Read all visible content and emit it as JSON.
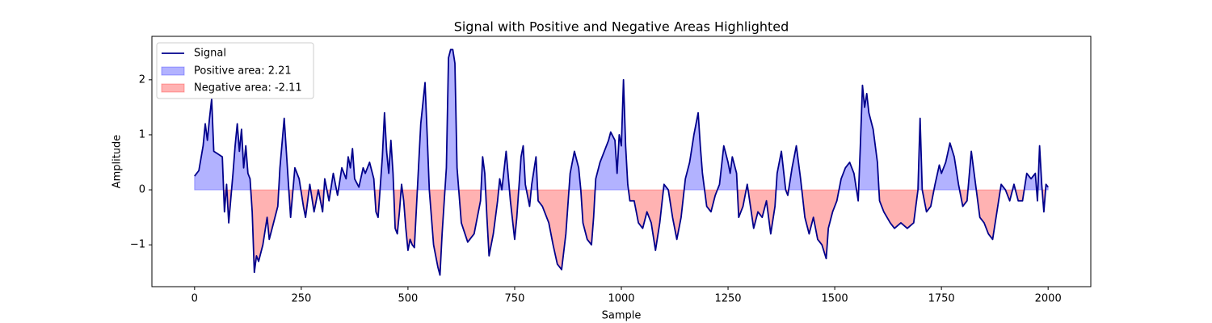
{
  "chart_data": {
    "type": "line",
    "title": "Signal with Positive and Negative Areas Highlighted",
    "xlabel": "Sample",
    "ylabel": "Amplitude",
    "xlim": [
      -100,
      2100
    ],
    "ylim": [
      -1.76,
      2.79
    ],
    "xticks": [
      0,
      250,
      500,
      750,
      1000,
      1250,
      1500,
      1750,
      2000
    ],
    "yticks": [
      {
        "value": -1,
        "label": "−1"
      },
      0,
      1,
      2
    ],
    "legend": "upper left",
    "series": [
      {
        "name": "Signal",
        "color": "#00008b",
        "x": [
          0,
          10,
          20,
          25,
          30,
          35,
          40,
          45,
          55,
          65,
          70,
          75,
          80,
          90,
          95,
          100,
          105,
          110,
          115,
          120,
          125,
          130,
          135,
          140,
          145,
          150,
          160,
          170,
          175,
          185,
          195,
          200,
          210,
          215,
          220,
          225,
          235,
          245,
          255,
          260,
          270,
          280,
          290,
          300,
          305,
          315,
          325,
          335,
          345,
          355,
          360,
          365,
          370,
          375,
          385,
          395,
          400,
          410,
          420,
          425,
          430,
          440,
          445,
          450,
          455,
          460,
          465,
          470,
          475,
          480,
          485,
          490,
          495,
          500,
          505,
          510,
          515,
          520,
          530,
          540,
          545,
          550,
          560,
          570,
          575,
          580,
          590,
          595,
          600,
          605,
          610,
          615,
          625,
          640,
          655,
          665,
          670,
          675,
          680,
          685,
          690,
          700,
          710,
          715,
          720,
          730,
          740,
          750,
          755,
          765,
          770,
          775,
          785,
          790,
          800,
          805,
          815,
          830,
          840,
          850,
          860,
          870,
          880,
          890,
          900,
          905,
          910,
          920,
          930,
          935,
          940,
          950,
          960,
          970,
          975,
          985,
          990,
          995,
          1000,
          1005,
          1010,
          1015,
          1020,
          1030,
          1040,
          1050,
          1060,
          1070,
          1080,
          1090,
          1100,
          1110,
          1120,
          1130,
          1140,
          1150,
          1160,
          1170,
          1180,
          1185,
          1190,
          1200,
          1210,
          1220,
          1230,
          1240,
          1250,
          1255,
          1260,
          1270,
          1275,
          1285,
          1295,
          1310,
          1320,
          1330,
          1340,
          1350,
          1360,
          1365,
          1375,
          1385,
          1390,
          1400,
          1410,
          1420,
          1430,
          1440,
          1450,
          1460,
          1470,
          1480,
          1485,
          1495,
          1505,
          1515,
          1525,
          1535,
          1545,
          1555,
          1560,
          1565,
          1570,
          1575,
          1580,
          1590,
          1600,
          1605,
          1615,
          1630,
          1640,
          1655,
          1670,
          1685,
          1695,
          1700,
          1705,
          1715,
          1725,
          1735,
          1745,
          1750,
          1760,
          1770,
          1780,
          1790,
          1800,
          1810,
          1820,
          1830,
          1840,
          1850,
          1860,
          1870,
          1880,
          1890,
          1900,
          1910,
          1920,
          1930,
          1940,
          1950,
          1960,
          1970,
          1975,
          1980,
          1985,
          1990,
          1995,
          2000
        ],
        "values": [
          0.25,
          0.35,
          0.8,
          1.2,
          0.9,
          1.3,
          1.65,
          0.7,
          0.65,
          0.6,
          -0.4,
          0.1,
          -0.6,
          0.3,
          0.8,
          1.2,
          0.7,
          1.1,
          0.4,
          0.8,
          0.3,
          0.2,
          -0.4,
          -1.5,
          -1.2,
          -1.3,
          -1.0,
          -0.5,
          -0.9,
          -0.6,
          -0.3,
          0.4,
          1.3,
          0.7,
          0.1,
          -0.5,
          0.4,
          0.2,
          -0.3,
          -0.5,
          0.1,
          -0.4,
          0.0,
          -0.4,
          0.2,
          -0.2,
          0.3,
          -0.1,
          0.4,
          0.2,
          0.6,
          0.4,
          0.75,
          0.2,
          0.05,
          0.4,
          0.3,
          0.5,
          0.2,
          -0.4,
          -0.5,
          0.6,
          1.4,
          0.7,
          0.3,
          0.9,
          0.3,
          -0.7,
          -0.8,
          -0.4,
          0.1,
          -0.2,
          -0.7,
          -1.1,
          -0.9,
          -1.0,
          -1.05,
          -0.3,
          1.2,
          1.95,
          1.0,
          0.0,
          -1.0,
          -1.4,
          -1.55,
          -0.8,
          0.4,
          2.4,
          2.55,
          2.55,
          2.3,
          0.4,
          -0.6,
          -0.95,
          -0.8,
          -0.4,
          -0.2,
          0.6,
          0.3,
          -0.5,
          -1.2,
          -0.8,
          -0.2,
          0.2,
          0.0,
          0.7,
          -0.2,
          -0.9,
          -0.5,
          0.6,
          0.8,
          0.1,
          -0.3,
          0.1,
          0.6,
          -0.2,
          -0.3,
          -0.6,
          -1.0,
          -1.35,
          -1.45,
          -0.8,
          0.3,
          0.7,
          0.4,
          0.0,
          -0.6,
          -0.9,
          -1.0,
          -0.5,
          0.2,
          0.5,
          0.7,
          0.9,
          1.05,
          0.9,
          0.3,
          1.0,
          0.8,
          2.0,
          0.8,
          0.1,
          -0.2,
          -0.2,
          -0.6,
          -0.7,
          -0.4,
          -0.6,
          -1.1,
          -0.6,
          0.1,
          0.0,
          -0.5,
          -0.9,
          -0.5,
          0.2,
          0.5,
          1.0,
          1.4,
          0.8,
          0.3,
          -0.3,
          -0.4,
          -0.1,
          0.1,
          0.8,
          0.5,
          0.3,
          0.6,
          0.3,
          -0.5,
          -0.3,
          0.1,
          -0.7,
          -0.4,
          -0.5,
          -0.2,
          -0.8,
          -0.3,
          0.3,
          0.7,
          0.0,
          -0.1,
          0.4,
          0.8,
          0.2,
          -0.5,
          -0.8,
          -0.5,
          -0.9,
          -1.0,
          -1.25,
          -0.7,
          -0.4,
          -0.2,
          0.2,
          0.4,
          0.5,
          0.3,
          -0.2,
          0.8,
          1.9,
          1.5,
          1.75,
          1.4,
          1.1,
          0.5,
          -0.2,
          -0.4,
          -0.6,
          -0.7,
          -0.6,
          -0.7,
          -0.6,
          0.0,
          1.3,
          0.0,
          -0.4,
          -0.3,
          0.1,
          0.45,
          0.3,
          0.5,
          0.85,
          0.6,
          0.1,
          -0.3,
          -0.2,
          0.7,
          0.1,
          -0.5,
          -0.6,
          -0.8,
          -0.9,
          -0.4,
          0.1,
          0.0,
          -0.2,
          0.1,
          -0.2,
          -0.2,
          0.3,
          0.2,
          0.3,
          -0.2,
          0.8,
          0.1,
          -0.4,
          0.1,
          0.05
        ]
      }
    ],
    "fills": [
      {
        "name": "Positive area: 2.21",
        "color": "#0000ff",
        "sign": "positive"
      },
      {
        "name": "Negative area: -2.11",
        "color": "#ff0000",
        "sign": "negative"
      }
    ]
  }
}
